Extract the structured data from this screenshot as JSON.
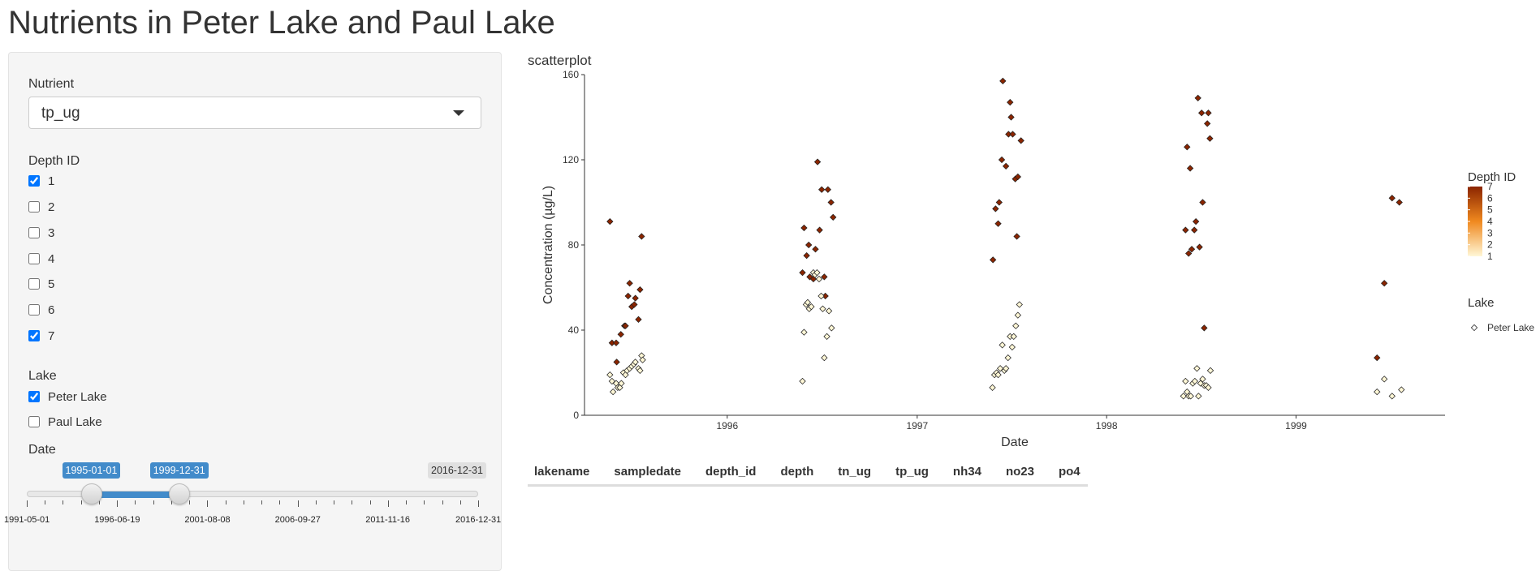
{
  "page": {
    "title": "Nutrients in Peter Lake and Paul Lake"
  },
  "sidebar": {
    "nutrient": {
      "label": "Nutrient",
      "value": "tp_ug"
    },
    "depth": {
      "label": "Depth ID",
      "options": [
        {
          "label": "1",
          "checked": true
        },
        {
          "label": "2",
          "checked": false
        },
        {
          "label": "3",
          "checked": false
        },
        {
          "label": "4",
          "checked": false
        },
        {
          "label": "5",
          "checked": false
        },
        {
          "label": "6",
          "checked": false
        },
        {
          "label": "7",
          "checked": true
        }
      ]
    },
    "lake": {
      "label": "Lake",
      "options": [
        {
          "label": "Peter Lake",
          "checked": true
        },
        {
          "label": "Paul Lake",
          "checked": false
        }
      ]
    },
    "date": {
      "label": "Date",
      "min": "1991-05-01",
      "max": "2016-12-31",
      "selected_from": "1995-01-01",
      "selected_to": "1999-12-31",
      "grid_labels": [
        "1991-05-01",
        "1996-06-19",
        "2001-08-08",
        "2006-09-27",
        "2011-11-16",
        "2016-12-31"
      ]
    }
  },
  "plot": {
    "heading": "scatterplot"
  },
  "chart_data": {
    "type": "scatter",
    "xlabel": "Date",
    "ylabel": "Concentration (µg/L)",
    "xlim": [
      "1995-04-01",
      "1999-10-15"
    ],
    "ylim": [
      0,
      160
    ],
    "x_ticks": [
      "1996",
      "1997",
      "1998",
      "1999"
    ],
    "y_ticks": [
      0,
      40,
      80,
      120,
      160
    ],
    "grid": false,
    "legend_placement": "right",
    "color_legend": {
      "title": "Depth ID",
      "labels": [
        "7",
        "6",
        "5",
        "4",
        "3",
        "2",
        "1"
      ],
      "low_color": "#fff7d6",
      "high_color": "#8b2500"
    },
    "shape_legend": {
      "title": "Lake",
      "entries": [
        "Peter Lake"
      ]
    },
    "series": [
      {
        "depth_id": 7,
        "color": "#8b2500",
        "points": [
          [
            "1995-05-20",
            91
          ],
          [
            "1995-05-24",
            34
          ],
          [
            "1995-06-01",
            34
          ],
          [
            "1995-06-02",
            25
          ],
          [
            "1995-06-10",
            38
          ],
          [
            "1995-06-17",
            42
          ],
          [
            "1995-06-19",
            42
          ],
          [
            "1995-06-24",
            56
          ],
          [
            "1995-06-27",
            62
          ],
          [
            "1995-07-01",
            51
          ],
          [
            "1995-07-06",
            52
          ],
          [
            "1995-07-08",
            55
          ],
          [
            "1995-07-14",
            45
          ],
          [
            "1995-07-17",
            59
          ],
          [
            "1995-07-20",
            84
          ],
          [
            "1996-05-25",
            67
          ],
          [
            "1996-05-28",
            88
          ],
          [
            "1996-06-02",
            75
          ],
          [
            "1996-06-06",
            80
          ],
          [
            "1996-06-08",
            65
          ],
          [
            "1996-06-15",
            64
          ],
          [
            "1996-06-19",
            78
          ],
          [
            "1996-06-23",
            119
          ],
          [
            "1996-06-27",
            87
          ],
          [
            "1996-07-01",
            106
          ],
          [
            "1996-07-06",
            65
          ],
          [
            "1996-07-08",
            56
          ],
          [
            "1996-07-13",
            106
          ],
          [
            "1996-07-19",
            100
          ],
          [
            "1996-07-23",
            93
          ],
          [
            "1997-05-27",
            73
          ],
          [
            "1997-06-01",
            97
          ],
          [
            "1997-06-06",
            90
          ],
          [
            "1997-06-08",
            100
          ],
          [
            "1997-06-13",
            120
          ],
          [
            "1997-06-15",
            157
          ],
          [
            "1997-06-21",
            117
          ],
          [
            "1997-06-26",
            132
          ],
          [
            "1997-06-29",
            147
          ],
          [
            "1997-07-01",
            140
          ],
          [
            "1997-07-04",
            132
          ],
          [
            "1997-07-09",
            111
          ],
          [
            "1997-07-12",
            84
          ],
          [
            "1997-07-14",
            112
          ],
          [
            "1997-07-20",
            129
          ],
          [
            "1998-06-02",
            87
          ],
          [
            "1998-06-05",
            126
          ],
          [
            "1998-06-08",
            76
          ],
          [
            "1998-06-11",
            116
          ],
          [
            "1998-06-14",
            78
          ],
          [
            "1998-06-19",
            87
          ],
          [
            "1998-06-22",
            91
          ],
          [
            "1998-06-26",
            149
          ],
          [
            "1998-06-29",
            79
          ],
          [
            "1998-07-03",
            142
          ],
          [
            "1998-07-05",
            100
          ],
          [
            "1998-07-08",
            41
          ],
          [
            "1998-07-14",
            137
          ],
          [
            "1998-07-16",
            142
          ],
          [
            "1998-07-19",
            130
          ],
          [
            "1999-06-06",
            27
          ],
          [
            "1999-06-20",
            62
          ],
          [
            "1999-07-05",
            102
          ],
          [
            "1999-07-19",
            100
          ]
        ]
      },
      {
        "depth_id": 1,
        "color": "#fff7d6",
        "points": [
          [
            "1995-05-20",
            19
          ],
          [
            "1995-05-24",
            16
          ],
          [
            "1995-05-26",
            11
          ],
          [
            "1995-06-01",
            15
          ],
          [
            "1995-06-04",
            13
          ],
          [
            "1995-06-08",
            13
          ],
          [
            "1995-06-11",
            15
          ],
          [
            "1995-06-15",
            20
          ],
          [
            "1995-06-19",
            19
          ],
          [
            "1995-06-22",
            21
          ],
          [
            "1995-06-27",
            22
          ],
          [
            "1995-07-01",
            23
          ],
          [
            "1995-07-05",
            24
          ],
          [
            "1995-07-08",
            25
          ],
          [
            "1995-07-14",
            22
          ],
          [
            "1995-07-17",
            21
          ],
          [
            "1995-07-20",
            28
          ],
          [
            "1995-07-22",
            26
          ],
          [
            "1996-05-25",
            16
          ],
          [
            "1996-05-28",
            39
          ],
          [
            "1996-06-01",
            52
          ],
          [
            "1996-06-04",
            53
          ],
          [
            "1996-06-07",
            50
          ],
          [
            "1996-06-11",
            51
          ],
          [
            "1996-06-15",
            67
          ],
          [
            "1996-06-18",
            66
          ],
          [
            "1996-06-22",
            67
          ],
          [
            "1996-06-26",
            64
          ],
          [
            "1996-06-30",
            56
          ],
          [
            "1996-07-03",
            50
          ],
          [
            "1996-07-06",
            27
          ],
          [
            "1996-07-11",
            37
          ],
          [
            "1996-07-15",
            49
          ],
          [
            "1996-07-20",
            41
          ],
          [
            "1997-05-26",
            13
          ],
          [
            "1997-05-30",
            19
          ],
          [
            "1997-06-03",
            20
          ],
          [
            "1997-06-06",
            19
          ],
          [
            "1997-06-10",
            22
          ],
          [
            "1997-06-14",
            33
          ],
          [
            "1997-06-18",
            21
          ],
          [
            "1997-06-21",
            22
          ],
          [
            "1997-06-25",
            27
          ],
          [
            "1997-06-29",
            37
          ],
          [
            "1997-07-03",
            32
          ],
          [
            "1997-07-06",
            37
          ],
          [
            "1997-07-10",
            42
          ],
          [
            "1997-07-14",
            47
          ],
          [
            "1997-07-17",
            52
          ],
          [
            "1998-05-29",
            9
          ],
          [
            "1998-06-02",
            16
          ],
          [
            "1998-06-05",
            11
          ],
          [
            "1998-06-08",
            9
          ],
          [
            "1998-06-12",
            9
          ],
          [
            "1998-06-16",
            15
          ],
          [
            "1998-06-20",
            16
          ],
          [
            "1998-06-24",
            22
          ],
          [
            "1998-06-27",
            9
          ],
          [
            "1998-07-01",
            15
          ],
          [
            "1998-07-05",
            17
          ],
          [
            "1998-07-08",
            14
          ],
          [
            "1998-07-12",
            14
          ],
          [
            "1998-07-16",
            13
          ],
          [
            "1998-07-20",
            21
          ],
          [
            "1999-06-06",
            11
          ],
          [
            "1999-06-20",
            17
          ],
          [
            "1999-07-05",
            9
          ],
          [
            "1999-07-23",
            12
          ]
        ]
      }
    ]
  },
  "table": {
    "columns": [
      "lakename",
      "sampledate",
      "depth_id",
      "depth",
      "tn_ug",
      "tp_ug",
      "nh34",
      "no23",
      "po4"
    ]
  }
}
